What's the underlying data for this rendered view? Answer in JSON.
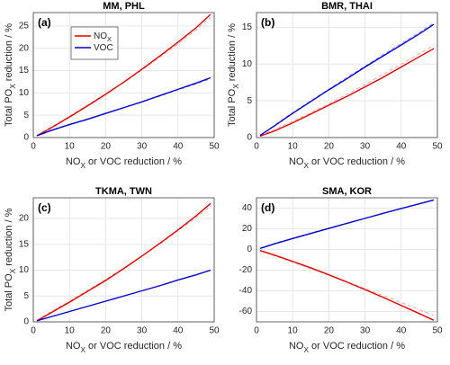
{
  "chart_data": [
    {
      "type": "line",
      "panel_label": "(a)",
      "title": "MM, PHL",
      "xlabel": [
        "NO",
        "X",
        " or VOC reduction / %"
      ],
      "ylabel": [
        "Total PO",
        "X",
        " reduction / %"
      ],
      "xlim": [
        0,
        50
      ],
      "xticks": [
        0,
        10,
        20,
        30,
        40,
        50
      ],
      "ylim": [
        0,
        28
      ],
      "yticks": [
        0,
        5,
        10,
        15,
        20,
        25
      ],
      "grid": true,
      "legend": "upper left",
      "x": [
        1,
        5,
        10,
        15,
        20,
        25,
        30,
        35,
        40,
        45,
        49
      ],
      "series": [
        {
          "name": [
            "NO",
            "X"
          ],
          "color": "#e00000",
          "values": [
            0.4,
            2.2,
            4.6,
            7.1,
            9.7,
            12.4,
            15.3,
            18.3,
            21.4,
            24.6,
            27.6
          ]
        },
        {
          "name": [
            "VOC"
          ],
          "color": "#0000d0",
          "values": [
            0.4,
            1.6,
            2.9,
            4.1,
            5.4,
            6.7,
            8.0,
            9.4,
            10.8,
            12.2,
            13.4
          ]
        },
        {
          "color": "#f4a0a0",
          "style": "dashed",
          "values": [
            0.5,
            2.4,
            4.8,
            7.3,
            9.8,
            12.4,
            15.1,
            18.0,
            21.0,
            24.1,
            27.0
          ]
        },
        {
          "color": "#9090e8",
          "style": "dashed",
          "values": [
            0.5,
            1.7,
            3.0,
            4.2,
            5.5,
            6.7,
            8.0,
            9.3,
            10.7,
            12.0,
            13.2
          ]
        }
      ]
    },
    {
      "type": "line",
      "panel_label": "(b)",
      "title": "BMR, THAI",
      "xlabel": [
        "NO",
        "X",
        " or VOC reduction / %"
      ],
      "ylabel": [
        "Total PO",
        "X",
        " reduction / %"
      ],
      "xlim": [
        0,
        50
      ],
      "xticks": [
        0,
        10,
        20,
        30,
        40,
        50
      ],
      "ylim": [
        0,
        17
      ],
      "yticks": [
        0,
        5,
        10,
        15
      ],
      "grid": true,
      "x": [
        1,
        5,
        10,
        15,
        20,
        25,
        30,
        35,
        40,
        45,
        49
      ],
      "series": [
        {
          "color": "#e00000",
          "values": [
            0.2,
            0.9,
            2.0,
            3.2,
            4.4,
            5.6,
            6.9,
            8.2,
            9.6,
            11.0,
            12.1
          ]
        },
        {
          "color": "#0000d0",
          "values": [
            0.3,
            1.6,
            3.3,
            4.9,
            6.5,
            8.0,
            9.6,
            11.1,
            12.6,
            14.1,
            15.4
          ]
        },
        {
          "color": "#f4a0a0",
          "style": "dashed",
          "values": [
            0.3,
            1.1,
            2.2,
            3.4,
            4.6,
            5.9,
            7.2,
            8.6,
            10.0,
            11.4,
            12.5
          ]
        },
        {
          "color": "#9090e8",
          "style": "dashed",
          "values": [
            0.3,
            1.7,
            3.4,
            5.0,
            6.6,
            8.2,
            9.7,
            11.3,
            12.8,
            14.3,
            15.6
          ]
        }
      ]
    },
    {
      "type": "line",
      "panel_label": "(c)",
      "title": "TKMA, TWN",
      "xlabel": [
        "NO",
        "X",
        " or VOC reduction / %"
      ],
      "ylabel": [
        "Total PO",
        "X",
        " reduction / %"
      ],
      "xlim": [
        0,
        50
      ],
      "xticks": [
        0,
        10,
        20,
        30,
        40,
        50
      ],
      "ylim": [
        0,
        24
      ],
      "yticks": [
        0,
        5,
        10,
        15,
        20
      ],
      "grid": true,
      "x": [
        1,
        5,
        10,
        15,
        20,
        25,
        30,
        35,
        40,
        45,
        49
      ],
      "series": [
        {
          "color": "#e00000",
          "values": [
            0.2,
            1.8,
            3.8,
            5.9,
            8.0,
            10.3,
            12.7,
            15.2,
            17.8,
            20.5,
            22.9
          ]
        },
        {
          "color": "#0000d0",
          "values": [
            0.2,
            1.0,
            2.0,
            3.0,
            4.0,
            5.0,
            6.0,
            7.0,
            8.1,
            9.1,
            10.0
          ]
        },
        {
          "color": "#f4a0a0",
          "style": "dashed",
          "values": [
            0.3,
            2.0,
            4.0,
            6.1,
            8.2,
            10.4,
            12.7,
            15.1,
            17.6,
            20.2,
            22.4
          ]
        }
      ]
    },
    {
      "type": "line",
      "panel_label": "(d)",
      "title": "SMA, KOR",
      "xlabel": [
        "NO",
        "X",
        " or VOC reduction / %"
      ],
      "xlim": [
        0,
        50
      ],
      "xticks": [
        0,
        10,
        20,
        30,
        40,
        50
      ],
      "ylim": [
        -70,
        50
      ],
      "yticks": [
        -60,
        -40,
        -20,
        0,
        20,
        40
      ],
      "grid": true,
      "x": [
        1,
        5,
        10,
        15,
        20,
        25,
        30,
        35,
        40,
        45,
        49
      ],
      "series": [
        {
          "color": "#e00000",
          "values": [
            -1,
            -5.5,
            -11.5,
            -17.8,
            -24.5,
            -31.5,
            -38.8,
            -46.3,
            -54.1,
            -62,
            -68.5
          ]
        },
        {
          "color": "#0000d0",
          "values": [
            1.0,
            5.5,
            10.6,
            15.5,
            20.4,
            25.3,
            30.1,
            34.9,
            39.6,
            44.2,
            47.9
          ]
        },
        {
          "color": "#f4a0a0",
          "style": "dashed",
          "values": [
            -1.2,
            -6.2,
            -12.3,
            -18.5,
            -24.8,
            -31.2,
            -37.8,
            -44.5,
            -51.3,
            -58.2,
            -63.8
          ]
        },
        {
          "color": "#9090e8",
          "style": "dashed",
          "values": [
            1.2,
            5.9,
            11.0,
            15.9,
            20.7,
            25.5,
            30.2,
            34.9,
            39.5,
            44.1,
            47.7
          ]
        }
      ]
    }
  ]
}
